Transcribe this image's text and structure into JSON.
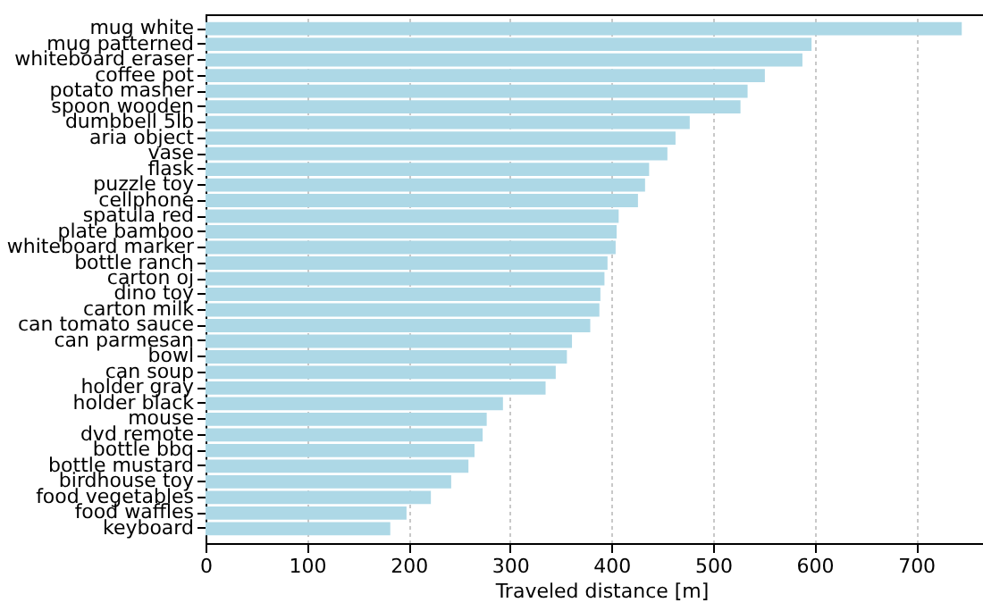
{
  "chart_data": {
    "type": "bar",
    "orientation": "horizontal",
    "xlabel": "Traveled distance [m]",
    "categories": [
      "mug white",
      "mug patterned",
      "whiteboard eraser",
      "coffee pot",
      "potato masher",
      "spoon wooden",
      "dumbbell 5lb",
      "aria object",
      "vase",
      "flask",
      "puzzle toy",
      "cellphone",
      "spatula red",
      "plate bamboo",
      "whiteboard marker",
      "bottle ranch",
      "carton oj",
      "dino toy",
      "carton milk",
      "can tomato sauce",
      "can parmesan",
      "bowl",
      "can soup",
      "holder gray",
      "holder black",
      "mouse",
      "dvd remote",
      "bottle bbq",
      "bottle mustard",
      "birdhouse toy",
      "food vegetables",
      "food waffles",
      "keyboard"
    ],
    "values": [
      745,
      597,
      588,
      551,
      534,
      527,
      477,
      463,
      455,
      437,
      433,
      426,
      407,
      405,
      404,
      396,
      393,
      389,
      388,
      379,
      361,
      356,
      345,
      335,
      293,
      277,
      273,
      265,
      259,
      242,
      222,
      198,
      182
    ],
    "color": "#add8e6",
    "xlim": [
      0,
      780
    ],
    "xticks": [
      0,
      100,
      200,
      300,
      400,
      500,
      600,
      700
    ],
    "grid": "x"
  }
}
